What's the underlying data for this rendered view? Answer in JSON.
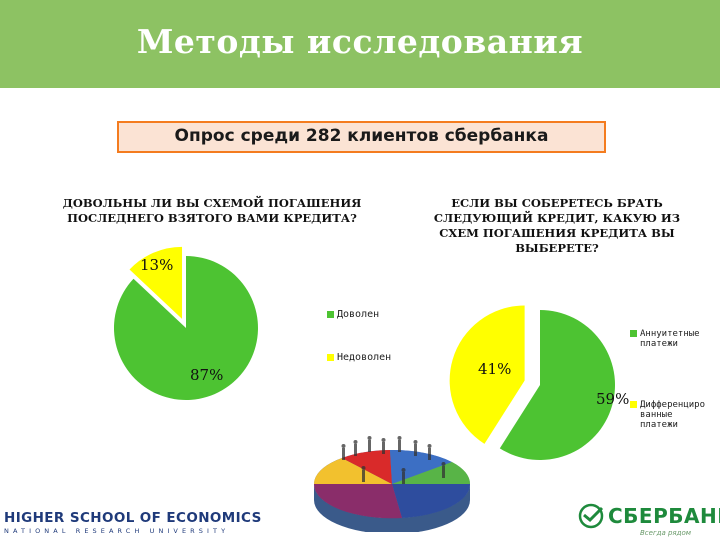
{
  "header": {
    "title": "Методы исследования"
  },
  "survey": {
    "label": "Опрос среди 282 клиентов сбербанка"
  },
  "colors": {
    "header_bg": "#8dc263",
    "green": "#4dc332",
    "yellow": "#ffff00",
    "box_border": "#f47c1f",
    "box_bg": "#fbe3d4"
  },
  "chart_data": [
    {
      "type": "pie",
      "title": "ДОВОЛЬНЫ ЛИ ВЫ СХЕМОЙ ПОГАШЕНИЯ ПОСЛЕДНЕГО ВЗЯТОГО ВАМИ КРЕДИТА?",
      "slices": [
        {
          "label": "Доволен",
          "value": 87,
          "display": "87%",
          "color": "#4dc332"
        },
        {
          "label": "Недоволен",
          "value": 13,
          "display": "13%",
          "color": "#ffff00"
        }
      ],
      "legend_position": "right"
    },
    {
      "type": "pie",
      "title": "ЕСЛИ ВЫ СОБЕРЕТЕСЬ БРАТЬ СЛЕДУЮЩИЙ КРЕДИТ, КАКУЮ ИЗ СХЕМ ПОГАШЕНИЯ КРЕДИТА ВЫ ВЫБЕРЕТЕ?",
      "slices": [
        {
          "label": "Аннуитетные платежи",
          "value": 59,
          "display": "59%",
          "color": "#4dc332"
        },
        {
          "label": "Дифференцированные платежи",
          "value": 41,
          "display": "41%",
          "color": "#ffff00"
        }
      ],
      "legend_position": "right"
    }
  ],
  "legend2": {
    "annuity_line1": "Аннуитетные",
    "annuity_line2": "платежи",
    "diff_line1": "Дифференциро",
    "diff_line2": "ванные",
    "diff_line3": "платежи"
  },
  "logos": {
    "hse_main": "HIGHER SCHOOL OF ECONOMICS",
    "hse_sub": "NATIONAL RESEARCH UNIVERSITY",
    "sber_name": "СБЕРБАНК",
    "sber_tagline": "Всегда рядом"
  }
}
